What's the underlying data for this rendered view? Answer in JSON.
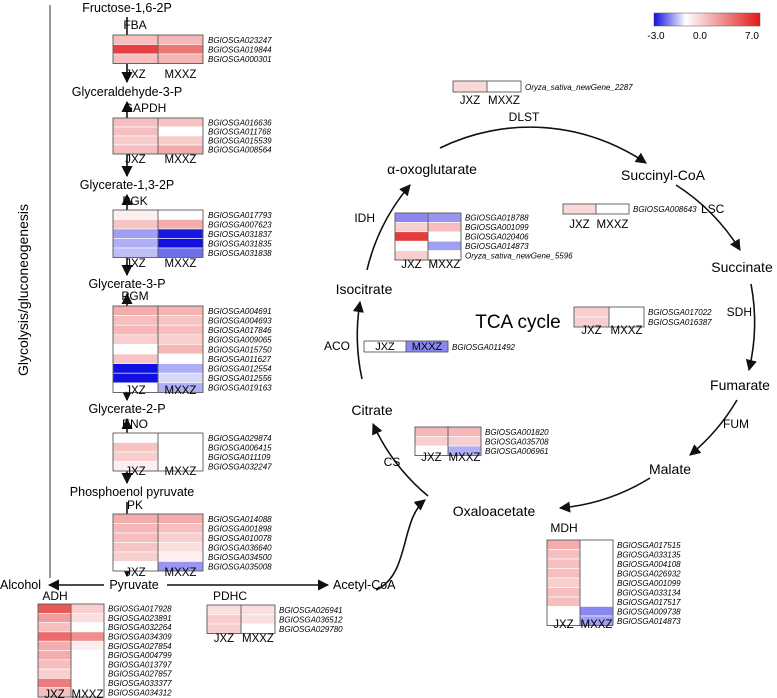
{
  "side_label": "Glycolysis/gluconeogenesis",
  "colorbar": {
    "min_label": "-3.0",
    "mid_label": "0.0",
    "max_label": "7.0",
    "low_color": "#1010e0",
    "mid_color": "#ffffff",
    "high_color": "#e01a1a",
    "min": -3.0,
    "max": 7.0
  },
  "sample_labels": [
    "JXZ",
    "MXXZ"
  ],
  "metabolites": {
    "fructose": "Fructose-1,6-2P",
    "g3p": "Glyceraldehyde-3-P",
    "g13p": "Glycerate-1,3-2P",
    "g3pa": "Glycerate-3-P",
    "g2p": "Glycerate-2-P",
    "pep": "Phosphoenol pyruvate",
    "pyruvate": "Pyruvate",
    "alcohol": "Alcohol",
    "acetylcoa": "Acetyl-CoA",
    "oxoglutarate": "α-oxoglutarate",
    "succinylcoa": "Succinyl-CoA",
    "succinate": "Succinate",
    "fumarate": "Fumarate",
    "malate": "Malate",
    "oxaloacetate": "Oxaloacetate",
    "citrate": "Citrate",
    "isocitrate": "Isocitrate"
  },
  "tca_label": "TCA cycle",
  "enzymes": [
    {
      "name": "FBA",
      "genes": [
        "BGIOSGA023247",
        "BGIOSGA019844",
        "BGIOSGA000301"
      ],
      "values": [
        [
          2.0,
          2.2
        ],
        [
          5.8,
          4.2
        ],
        [
          2.0,
          2.3
        ]
      ]
    },
    {
      "name": "GAPDH",
      "genes": [
        "BGIOSGA016636",
        "BGIOSGA011768",
        "BGIOSGA015539",
        "BGIOSGA008564"
      ],
      "values": [
        [
          2.0,
          1.8
        ],
        [
          2.0,
          0.0
        ],
        [
          1.6,
          1.6
        ],
        [
          2.0,
          2.6
        ]
      ]
    },
    {
      "name": "PGK",
      "genes": [
        "BGIOSGA017793",
        "BGIOSGA007623",
        "BGIOSGA031837",
        "BGIOSGA031835",
        "BGIOSGA031838"
      ],
      "values": [
        [
          0.5,
          0.0
        ],
        [
          1.8,
          2.5
        ],
        [
          -1.2,
          -2.9
        ],
        [
          -1.0,
          -3.0
        ],
        [
          -0.8,
          -1.8
        ]
      ]
    },
    {
      "name": "PGM",
      "genes": [
        "BGIOSGA004691",
        "BGIOSGA004693",
        "BGIOSGA017846",
        "BGIOSGA009065",
        "BGIOSGA015750",
        "BGIOSGA011627",
        "BGIOSGA012554",
        "BGIOSGA012556",
        "BGIOSGA019163"
      ],
      "values": [
        [
          2.5,
          2.3
        ],
        [
          2.0,
          1.8
        ],
        [
          2.2,
          2.0
        ],
        [
          1.5,
          1.5
        ],
        [
          0.0,
          2.2
        ],
        [
          1.8,
          0.0
        ],
        [
          -3.0,
          -1.0
        ],
        [
          -3.0,
          -0.5
        ],
        [
          0.0,
          -1.0
        ]
      ]
    },
    {
      "name": "ENO",
      "genes": [
        "BGIOSGA029874",
        "BGIOSGA006415",
        "BGIOSGA011109",
        "BGIOSGA032247"
      ],
      "values": [
        [
          0.0,
          0.0
        ],
        [
          1.8,
          0.0
        ],
        [
          1.5,
          0.0
        ],
        [
          0.5,
          0.0
        ]
      ]
    },
    {
      "name": "PK",
      "genes": [
        "BGIOSGA014088",
        "BGIOSGA001898",
        "BGIOSGA010078",
        "BGIOSGA036640",
        "BGIOSGA034500",
        "BGIOSGA035008"
      ],
      "values": [
        [
          2.5,
          2.5
        ],
        [
          2.2,
          2.0
        ],
        [
          2.0,
          1.5
        ],
        [
          1.8,
          1.0
        ],
        [
          1.5,
          0.5
        ],
        [
          0.0,
          -1.3
        ]
      ]
    },
    {
      "name": "ADH",
      "genes": [
        "BGIOSGA017928",
        "BGIOSGA023891",
        "BGIOSGA032264",
        "BGIOSGA034309",
        "BGIOSGA027854",
        "BGIOSGA004799",
        "BGIOSGA013797",
        "BGIOSGA027857",
        "BGIOSGA033377",
        "BGIOSGA034312"
      ],
      "values": [
        [
          5.0,
          1.5
        ],
        [
          3.0,
          1.0
        ],
        [
          2.0,
          0.0
        ],
        [
          4.5,
          3.5
        ],
        [
          2.5,
          0.5
        ],
        [
          2.5,
          0.0
        ],
        [
          2.0,
          0.0
        ],
        [
          1.5,
          0.0
        ],
        [
          4.0,
          0.0
        ],
        [
          2.0,
          0.0
        ]
      ]
    },
    {
      "name": "PDHC",
      "genes": [
        "BGIOSGA026941",
        "BGIOSGA036512",
        "BGIOSGA029780"
      ],
      "values": [
        [
          1.0,
          1.0
        ],
        [
          1.5,
          1.0
        ],
        [
          1.5,
          0.0
        ]
      ]
    },
    {
      "name": "DLST",
      "genes": [
        "Oryza_sativa_newGene_2287"
      ],
      "values": [
        [
          1.2,
          0.0
        ]
      ]
    },
    {
      "name": "LSC",
      "genes": [
        "BGIOSGA008643"
      ],
      "values": [
        [
          1.2,
          0.0
        ]
      ]
    },
    {
      "name": "IDH",
      "genes": [
        "BGIOSGA018788",
        "BGIOSGA001099",
        "BGIOSGA020406",
        "BGIOSGA014873",
        "Oryza_sativa_newGene_5596"
      ],
      "values": [
        [
          -1.5,
          -1.3
        ],
        [
          1.5,
          2.0
        ],
        [
          6.0,
          0.0
        ],
        [
          0.0,
          -1.2
        ],
        [
          1.5,
          0.0
        ]
      ]
    },
    {
      "name": "SDH",
      "genes": [
        "BGIOSGA017022",
        "BGIOSGA016387"
      ],
      "values": [
        [
          1.5,
          0.0
        ],
        [
          1.5,
          0.0
        ]
      ]
    },
    {
      "name": "ACO",
      "genes": [
        "BGIOSGA011492"
      ],
      "values": [
        [
          0.0,
          -1.5
        ]
      ]
    },
    {
      "name": "FUM",
      "genes": [],
      "values": []
    },
    {
      "name": "CS",
      "genes": [
        "BGIOSGA001820",
        "BGIOSGA035708",
        "BGIOSGA006961"
      ],
      "values": [
        [
          2.2,
          2.2
        ],
        [
          1.5,
          1.5
        ],
        [
          0.0,
          -1.0
        ]
      ]
    },
    {
      "name": "MDH",
      "genes": [
        "BGIOSGA017515",
        "BGIOSGA033135",
        "BGIOSGA004108",
        "BGIOSGA026932",
        "BGIOSGA001099",
        "BGIOSGA033134",
        "BGIOSGA017517",
        "BGIOSGA009738",
        "BGIOSGA014873"
      ],
      "values": [
        [
          2.5,
          0.0
        ],
        [
          2.0,
          0.0
        ],
        [
          2.0,
          0.0
        ],
        [
          2.0,
          0.0
        ],
        [
          1.5,
          0.0
        ],
        [
          2.0,
          0.0
        ],
        [
          2.0,
          0.0
        ],
        [
          0.0,
          -1.5
        ],
        [
          0.0,
          -1.2
        ]
      ]
    }
  ]
}
